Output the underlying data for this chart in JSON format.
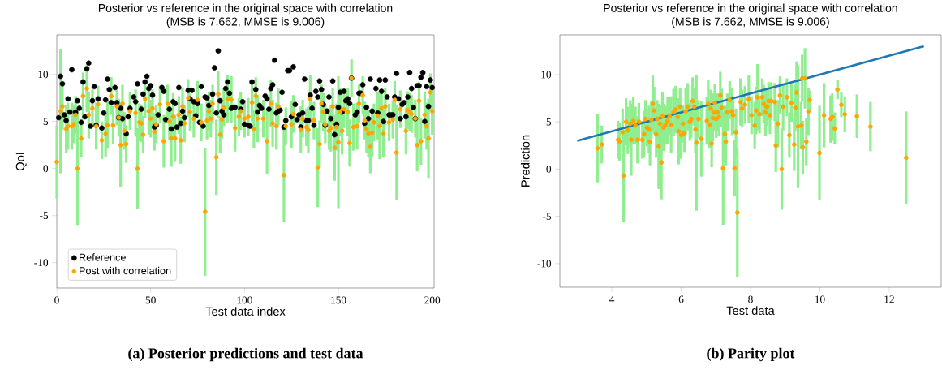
{
  "chart_data": [
    {
      "type": "scatter",
      "title": "Posterior vs reference in the original space with correlation",
      "subtitle": "(MSB is 7.662, MMSE is 9.006)",
      "xlabel": "Test data index",
      "ylabel": "QoI",
      "xlim": [
        0,
        201
      ],
      "ylim": [
        -12.7,
        14.2
      ],
      "xticks": [
        0,
        50,
        100,
        150,
        200
      ],
      "yticks": [
        -10,
        -5,
        0,
        5,
        10
      ],
      "marker": "circle",
      "legend": "bottom left",
      "annotations": [
        "(a) Posterior predictions and test data"
      ],
      "series": [
        {
          "name": "Reference",
          "color": "#000000",
          "x": [
            1,
            2,
            3,
            4,
            5,
            6,
            7,
            8,
            10,
            11,
            12,
            13,
            14,
            15,
            16,
            17,
            18,
            19,
            20,
            21,
            22,
            24,
            25,
            26,
            27,
            28,
            29,
            31,
            32,
            33,
            34,
            35,
            37,
            38,
            39,
            41,
            42,
            43,
            45,
            46,
            47,
            48,
            49,
            50,
            51,
            52,
            53,
            54,
            56,
            57,
            58,
            60,
            61,
            62,
            63,
            64,
            65,
            66,
            67,
            68,
            70,
            71,
            72,
            73,
            74,
            75,
            76,
            77,
            78,
            79,
            80,
            81,
            83,
            84,
            85,
            86,
            87,
            88,
            89,
            90,
            91,
            92,
            93,
            94,
            95,
            98,
            99,
            100,
            102,
            103,
            104,
            106,
            107,
            108,
            109,
            111,
            112,
            113,
            114,
            115,
            116,
            117,
            118,
            119,
            120,
            121,
            122,
            123,
            124,
            125,
            126,
            127,
            128,
            129,
            130,
            131,
            132,
            133,
            134,
            135,
            136,
            137,
            138,
            139,
            140,
            141,
            142,
            143,
            144,
            145,
            146,
            147,
            148,
            149,
            150,
            151,
            152,
            153,
            154,
            155,
            156,
            157,
            159,
            160,
            161,
            162,
            163,
            164,
            165,
            166,
            167,
            168,
            170,
            171,
            172,
            173,
            174,
            175,
            176,
            177,
            178,
            179,
            180,
            181,
            182,
            183,
            184,
            185,
            186,
            187,
            188,
            189,
            190,
            191,
            192,
            193,
            194,
            195,
            196,
            197,
            198,
            199,
            200
          ],
          "values": [
            5.4,
            9.8,
            9.0,
            5.7,
            5.1,
            7.4,
            6.0,
            10.5,
            6.0,
            7.2,
            6.4,
            4.9,
            9.2,
            5.5,
            10.6,
            11.2,
            4.5,
            7.2,
            8.7,
            4.6,
            7.4,
            4.3,
            5.9,
            7.3,
            9.5,
            8.4,
            7.0,
            8.6,
            7.0,
            5.4,
            6.4,
            5.3,
            3.7,
            5.5,
            6.4,
            7.6,
            7.1,
            9.0,
            6.3,
            7.9,
            9.2,
            9.8,
            8.5,
            8.8,
            7.8,
            4.4,
            4.6,
            5.7,
            8.6,
            8.2,
            5.2,
            6.3,
            4.2,
            7.1,
            6.9,
            4.4,
            8.6,
            4.8,
            6.1,
            5.4,
            8.3,
            7.4,
            8.3,
            7.1,
            5.6,
            6.9,
            4.9,
            8.7,
            4.5,
            7.6,
            7.5,
            6.7,
            7.9,
            10.7,
            5.9,
            12.5,
            7.2,
            6.1,
            5.7,
            8.5,
            9.2,
            8.0,
            6.4,
            6.5,
            6.5,
            6.3,
            7.1,
            4.7,
            4.6,
            4.5,
            9.2,
            8.4,
            6.0,
            6.7,
            6.4,
            7.7,
            7.4,
            6.3,
            8.5,
            8.9,
            11.5,
            5.9,
            6.1,
            6.2,
            8.1,
            4.4,
            5.1,
            10.4,
            10.4,
            5.5,
            10.8,
            6.8,
            5.2,
            5.7,
            4.4,
            5.9,
            9.5,
            5.1,
            5.1,
            7.8,
            6.4,
            4.6,
            8.2,
            7.6,
            9.3,
            8.4,
            6.8,
            4.6,
            6.1,
            7.6,
            5.3,
            9.3,
            3.6,
            4.7,
            6.5,
            8.1,
            6.0,
            8.2,
            7.2,
            7.4,
            6.9,
            9.6,
            5.7,
            6.0,
            8.0,
            8.0,
            8.9,
            4.8,
            6.5,
            5.3,
            9.5,
            6.1,
            8.5,
            5.9,
            9.4,
            8.2,
            5.0,
            9.4,
            7.6,
            5.7,
            5.7,
            5.7,
            7.6,
            10.1,
            7.4,
            5.3,
            6.8,
            7.0,
            5.5,
            7.6,
            10.2,
            8.5,
            6.5,
            5.3,
            8.8,
            8.8,
            9.7,
            10.2,
            5.0,
            8.7,
            6.6,
            9.4,
            8.6
          ]
        },
        {
          "name": "Post with correlation",
          "color": "#ffa500",
          "x": [
            0,
            2,
            3,
            5,
            6,
            8,
            9,
            10,
            11,
            13,
            14,
            16,
            17,
            19,
            21,
            22,
            24,
            26,
            27,
            29,
            30,
            32,
            33,
            34,
            35,
            36,
            37,
            39,
            42,
            43,
            44,
            45,
            46,
            47,
            49,
            50,
            51,
            52,
            53,
            55,
            57,
            59,
            60,
            61,
            62,
            63,
            65,
            66,
            67,
            68,
            70,
            71,
            73,
            75,
            77,
            79,
            80,
            81,
            82,
            83,
            85,
            86,
            87,
            88,
            89,
            91,
            93,
            95,
            97,
            98,
            100,
            102,
            104,
            105,
            106,
            107,
            110,
            112,
            114,
            115,
            117,
            118,
            121,
            122,
            125,
            126,
            130,
            131,
            133,
            134,
            135,
            137,
            139,
            140,
            141,
            142,
            143,
            145,
            146,
            147,
            148,
            149,
            150,
            151,
            152,
            153,
            155,
            156,
            157,
            158,
            160,
            161,
            163,
            164,
            165,
            166,
            167,
            168,
            169,
            171,
            172,
            173,
            174,
            175,
            177,
            179,
            180,
            181,
            183,
            186,
            187,
            188,
            189,
            191,
            192,
            193,
            194,
            196,
            197,
            198,
            199,
            200
          ],
          "values": [
            0.7,
            6.1,
            6.6,
            4.2,
            4.5,
            4.5,
            4.7,
            5.7,
            0.0,
            3.2,
            7.7,
            8.5,
            5.7,
            6.4,
            4.5,
            6.8,
            3.0,
            3.7,
            4.6,
            7.7,
            4.6,
            6.6,
            5.4,
            2.5,
            6.9,
            4.0,
            2.6,
            6.1,
            5.9,
            0.0,
            4.9,
            4.8,
            3.6,
            7.4,
            6.1,
            5.3,
            6.4,
            3.9,
            4.7,
            6.8,
            2.9,
            6.9,
            5.0,
            3.2,
            5.5,
            3.2,
            5.7,
            3.0,
            6.6,
            4.8,
            7.5,
            6.0,
            5.3,
            7.3,
            4.9,
            -4.6,
            5.1,
            6.1,
            5.3,
            6.9,
            1.2,
            7.9,
            3.6,
            5.2,
            6.5,
            7.4,
            7.3,
            4.3,
            5.5,
            6.1,
            5.3,
            5.5,
            7.0,
            4.2,
            7.7,
            5.3,
            5.3,
            2.9,
            6.9,
            4.8,
            4.5,
            6.6,
            -0.7,
            4.5,
            4.7,
            5.8,
            4.1,
            5.3,
            4.4,
            4.1,
            7.4,
            5.1,
            0.1,
            2.6,
            6.9,
            6.0,
            4.7,
            4.0,
            4.3,
            6.6,
            2.2,
            4.4,
            2.8,
            6.0,
            4.0,
            6.3,
            6.0,
            2.7,
            9.6,
            4.4,
            4.5,
            6.9,
            7.8,
            5.1,
            4.2,
            3.7,
            2.3,
            3.8,
            4.9,
            5.6,
            4.5,
            6.4,
            3.7,
            6.6,
            4.9,
            5.2,
            7.3,
            1.7,
            6.3,
            4.0,
            6.2,
            6.0,
            5.8,
            5.3,
            2.5,
            7.2,
            2.9,
            5.7,
            4.5,
            3.2,
            8.1,
            6.1
          ],
          "errors": [
            3.9,
            6.6,
            2.5,
            2.5,
            2.5,
            2.5,
            2,
            2,
            6,
            2,
            2.5,
            2.5,
            2.5,
            2,
            2.5,
            2,
            2,
            2.5,
            2.5,
            2,
            2,
            2,
            2,
            4.5,
            2,
            2,
            2,
            2,
            2.5,
            4.3,
            2,
            2,
            2,
            2,
            2.5,
            2,
            2,
            2,
            2,
            2,
            2.8,
            2,
            2,
            3,
            2.5,
            2.5,
            2,
            2.5,
            2,
            2,
            2,
            2,
            2,
            2,
            2,
            6.8,
            2,
            2,
            2,
            2,
            4,
            2.5,
            2,
            2,
            2,
            2.5,
            2.5,
            2.5,
            2,
            2,
            2,
            2,
            2,
            2,
            2,
            2.5,
            2,
            3.5,
            2.5,
            2.5,
            2.5,
            2,
            5,
            2,
            2.5,
            2,
            2.5,
            2,
            2,
            2.5,
            2.5,
            2,
            4.2,
            2.5,
            2,
            2,
            2,
            2,
            2.5,
            2,
            3.5,
            2.5,
            7,
            2.5,
            2.5,
            2,
            2.5,
            2.5,
            2,
            2.5,
            2.5,
            2,
            2,
            2,
            2.5,
            2.5,
            2.8,
            2.5,
            2,
            2.5,
            3.5,
            2,
            2.5,
            2,
            2,
            2,
            2,
            5,
            2,
            2.5,
            2,
            2,
            2,
            2,
            2.8,
            2,
            2.5,
            2.5,
            2.5,
            4.2,
            2,
            2.5
          ]
        }
      ]
    },
    {
      "type": "scatter",
      "title": "Posterior vs reference in the original space with correlation",
      "subtitle": "(MSB is 7.662, MMSE is 9.006)",
      "xlabel": "Test data",
      "ylabel": "Prediction",
      "xlim": [
        2.5,
        13.5
      ],
      "ylim": [
        -12.5,
        14.2
      ],
      "xticks": [
        4,
        6,
        8,
        10,
        12
      ],
      "yticks": [
        -10,
        -5,
        0,
        5,
        10
      ],
      "marker": "circle",
      "annotations": [
        "(b) Parity plot"
      ],
      "series": [
        {
          "color": "#ffa500",
          "x": [
            3.59,
            3.71,
            4.18,
            4.22,
            4.34,
            4.31,
            4.41,
            4.46,
            4.53,
            4.56,
            4.62,
            4.68,
            4.74,
            4.78,
            4.88,
            4.93,
            4.97,
            5.01,
            5.07,
            5.1,
            5.14,
            5.18,
            5.22,
            5.28,
            5.31,
            5.35,
            5.39,
            5.43,
            5.46,
            5.49,
            5.55,
            5.61,
            5.67,
            5.71,
            5.78,
            5.84,
            5.9,
            5.93,
            5.97,
            6.0,
            6.05,
            6.09,
            6.13,
            6.19,
            6.25,
            6.29,
            6.33,
            6.38,
            6.41,
            6.44,
            6.5,
            6.58,
            6.74,
            6.78,
            6.82,
            6.85,
            6.88,
            6.91,
            6.94,
            6.97,
            7.01,
            7.05,
            7.09,
            7.13,
            7.17,
            7.21,
            7.26,
            7.29,
            7.33,
            7.4,
            7.47,
            7.5,
            7.54,
            7.58,
            7.62,
            7.71,
            7.76,
            7.84,
            7.95,
            8.03,
            8.12,
            8.16,
            8.2,
            8.26,
            8.34,
            8.46,
            8.6,
            8.38,
            8.43,
            8.48,
            8.52,
            8.56,
            8.7,
            8.73,
            8.79,
            8.85,
            8.9,
            8.94,
            9.05,
            9.12,
            9.18,
            9.26,
            9.29,
            9.33,
            9.37,
            9.46,
            9.49,
            9.51,
            9.57,
            9.61,
            9.67,
            9.71,
            9.99,
            10.12,
            10.31,
            10.36,
            10.43,
            10.51,
            10.62,
            10.72,
            11.07,
            11.46,
            12.49
          ],
          "values": [
            2.2,
            2.6,
            3.1,
            2.9,
            -0.7,
            3.9,
            5.0,
            4.1,
            4.8,
            3.1,
            5.1,
            4.6,
            3.1,
            5.0,
            3.1,
            3.7,
            5.3,
            4.4,
            4.2,
            2.9,
            5.2,
            6.9,
            6.2,
            3.7,
            5.3,
            2.4,
            4.8,
            0.7,
            5.6,
            4.4,
            4.7,
            5.1,
            5.6,
            4.7,
            6.0,
            6.3,
            5.5,
            4.0,
            6.6,
            3.6,
            4.8,
            3.8,
            6.1,
            6.6,
            5.0,
            5.3,
            7.2,
            6.6,
            4.2,
            2.8,
            5.3,
            3.2,
            5.1,
            6.9,
            4.7,
            6.4,
            2.7,
            5.4,
            6.0,
            7.0,
            5.3,
            6.0,
            5.5,
            7.8,
            6.5,
            0.1,
            3.7,
            2.9,
            6.0,
            7.3,
            6.1,
            5.7,
            0.1,
            3.9,
            -4.6,
            7.1,
            6.4,
            6.8,
            7.4,
            5.7,
            4.6,
            6.2,
            7.6,
            5.8,
            7.6,
            6.6,
            7.2,
            6.9,
            6.0,
            6.6,
            7.2,
            5.7,
            7.1,
            2.5,
            4.8,
            7.8,
            0.0,
            6.6,
            7.6,
            3.6,
            7.0,
            2.6,
            6.5,
            8.1,
            4.5,
            4.6,
            9.6,
            2.3,
            9.6,
            2.9,
            6.1,
            7.3,
            1.7,
            5.7,
            5.3,
            5.5,
            4.3,
            8.4,
            6.8,
            5.8,
            5.6,
            4.5,
            1.2
          ],
          "errors": [
            3.6,
            2,
            2,
            2,
            4.9,
            2.5,
            2.5,
            2.5,
            2.5,
            3.8,
            2.5,
            2,
            2.5,
            2,
            2,
            2.5,
            2,
            2,
            2.5,
            2.5,
            2,
            3,
            2.5,
            2.5,
            2,
            4.5,
            2,
            3.9,
            2.5,
            2.5,
            2,
            2.5,
            2,
            3,
            2.5,
            2.5,
            2,
            3.5,
            2,
            2.5,
            2,
            2,
            2.5,
            2.5,
            2,
            2,
            2.5,
            2,
            2.5,
            7.2,
            2,
            4,
            2.5,
            2.5,
            2.5,
            2,
            2.5,
            2.5,
            2,
            2,
            2,
            2,
            2,
            2.5,
            2,
            6,
            3,
            2.5,
            2,
            2,
            2.5,
            2,
            3,
            2.5,
            6.8,
            2.5,
            2,
            2,
            2.5,
            2,
            2.5,
            2.5,
            3.5,
            2,
            2,
            2,
            2,
            2,
            2.5,
            2,
            2,
            2,
            2,
            2.8,
            2.5,
            2,
            4.3,
            2.5,
            2,
            2.4,
            2,
            2.8,
            2.5,
            3.3,
            6.5,
            2.5,
            2.5,
            2.8,
            3.2,
            2.5,
            2.5,
            1,
            5,
            3.4,
            2.5,
            2.5,
            1.7,
            1,
            1.3,
            1.9,
            2.3,
            2.6,
            4.9
          ]
        },
        {
          "type": "line",
          "color": "#1f77b4",
          "marker": "none",
          "line_style": "solid",
          "x": [
            3,
            13
          ],
          "values": [
            3,
            13
          ]
        }
      ]
    }
  ]
}
